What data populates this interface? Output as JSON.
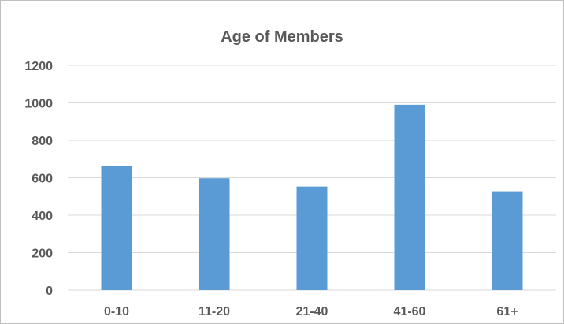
{
  "chart_data": {
    "type": "bar",
    "title": "Age of Members",
    "xlabel": "",
    "ylabel": "",
    "categories": [
      "0-10",
      "11-20",
      "21-40",
      "41-60",
      "61+"
    ],
    "values": [
      665,
      597,
      553,
      990,
      528
    ],
    "ylim": [
      0,
      1200
    ],
    "yticks": [
      0,
      200,
      400,
      600,
      800,
      1000,
      1200
    ],
    "grid": true,
    "legend": "none",
    "colors": {
      "bar": "#5b9bd5",
      "grid": "#d9d9d9",
      "text": "#595959"
    }
  }
}
